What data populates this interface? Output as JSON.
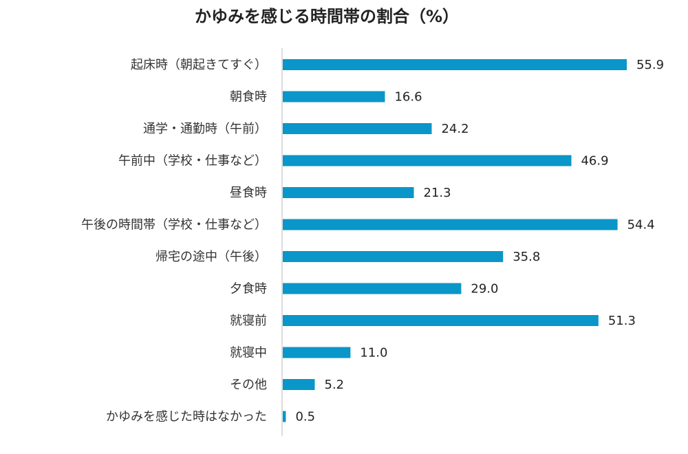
{
  "chart_data": {
    "type": "bar",
    "orientation": "horizontal",
    "title": "かゆみを感じる時間帯の割合（%）",
    "xlabel": "",
    "ylabel": "",
    "xlim": [
      0,
      57
    ],
    "grid": false,
    "legend": "none",
    "bar_color": "#0A96C8",
    "categories": [
      "起床時（朝起きてすぐ）",
      "朝食時",
      "通学・通勤時（午前）",
      "午前中（学校・仕事など）",
      "昼食時",
      "午後の時間帯（学校・仕事など）",
      "帰宅の途中（午後）",
      "夕食時",
      "就寝前",
      "就寝中",
      "その他",
      "かゆみを感じた時はなかった"
    ],
    "values": [
      55.9,
      16.6,
      24.2,
      46.9,
      21.3,
      54.4,
      35.8,
      29.0,
      51.3,
      11.0,
      5.2,
      0.5
    ],
    "value_labels": [
      "55.9",
      "16.6",
      "24.2",
      "46.9",
      "21.3",
      "54.4",
      "35.8",
      "29.0",
      "51.3",
      "11.0",
      "5.2",
      "0.5"
    ]
  }
}
